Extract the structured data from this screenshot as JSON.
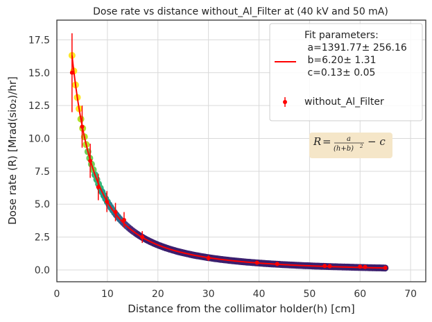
{
  "chart_data": {
    "type": "scatter",
    "title": "Dose rate vs distance without_Al_Filter at  (40 kV and 50 mA)",
    "xlabel": "Distance from the collimator holder(h) [cm]",
    "ylabel": "Dose rate (R) [Mrad(sio₂)/hr]",
    "xlim": [
      0,
      73
    ],
    "ylim": [
      -0.9,
      19.0
    ],
    "xticks": [
      0,
      10,
      20,
      30,
      40,
      50,
      60,
      70
    ],
    "yticks": [
      0.0,
      2.5,
      5.0,
      7.5,
      10.0,
      12.5,
      15.0,
      17.5
    ],
    "xtick_labels": [
      "0",
      "10",
      "20",
      "30",
      "40",
      "50",
      "60",
      "70"
    ],
    "ytick_labels": [
      "0.0",
      "2.5",
      "5.0",
      "7.5",
      "10.0",
      "12.5",
      "15.0",
      "17.5"
    ],
    "grid": true,
    "legend_position": "top-right",
    "fit": {
      "a": 1391.77,
      "b": 6.2,
      "c": 0.13,
      "x_range": [
        3,
        65
      ]
    },
    "legend": {
      "header": "Fit parameters:",
      "fit_lines": [
        " a=1391.77± 256.16",
        " b=6.20± 1.31",
        " c=0.13± 0.05"
      ],
      "series_label": "without_Al_Filter"
    },
    "equation": {
      "lhs": "R",
      "eq": "=",
      "numerator": "a",
      "denominator": "(h+b)",
      "exponent": "2",
      "tail": "− c"
    },
    "series": [
      {
        "name": "without_Al_Filter",
        "x": [
          3,
          5,
          6.6,
          8.2,
          9.9,
          11.6,
          13.3,
          16.9,
          30,
          39.6,
          43.6,
          53,
          54,
          60,
          61,
          65
        ],
        "y": [
          15.0,
          10.9,
          8.3,
          6.3,
          5.2,
          4.4,
          3.8,
          2.5,
          0.9,
          0.55,
          0.45,
          0.3,
          0.28,
          0.25,
          0.22,
          0.16
        ],
        "yerr": [
          3.0,
          1.6,
          1.3,
          1.0,
          0.8,
          0.7,
          0.6,
          0.45,
          0.2,
          0.12,
          0.1,
          0.08,
          0.08,
          0.07,
          0.07,
          0.06
        ],
        "color": "#ff0000"
      }
    ],
    "colors": {
      "fit_line": "#ff0000",
      "data": "#ff0000",
      "band_dark": "#3b1f6e",
      "band_light": "#fde725",
      "grid": "#d9d9d9",
      "axis": "#333333",
      "equation_bg": "#f5e6c8"
    }
  }
}
